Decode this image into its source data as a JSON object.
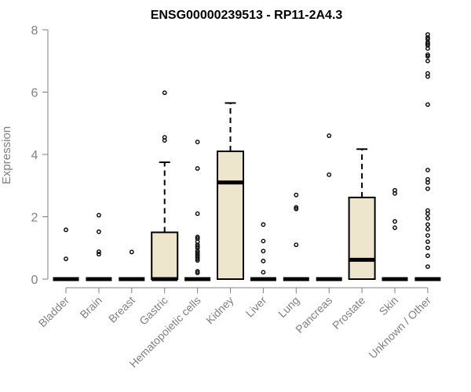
{
  "chart_data": {
    "type": "box",
    "title": "ENSG00000239513 - RP11-2A4.3",
    "xlabel": "",
    "ylabel": "Expression",
    "ylim": [
      0,
      8
    ],
    "yticks": [
      0,
      2,
      4,
      6,
      8
    ],
    "box_fill": "#ede6cc",
    "stroke_color": "#000000",
    "categories": [
      "Bladder",
      "Brain",
      "Breast",
      "Gastric",
      "Hematopoietic cells",
      "Kidney",
      "Liver",
      "Lung",
      "Pancreas",
      "Prostate",
      "Skin",
      "Unknown / Other"
    ],
    "boxes": [
      {
        "category": "Bladder",
        "q1": 0,
        "median": 0,
        "q3": 0,
        "whisker_low": 0,
        "whisker_high": 0,
        "outliers": [
          0.65,
          1.58
        ]
      },
      {
        "category": "Brain",
        "q1": 0,
        "median": 0,
        "q3": 0,
        "whisker_low": 0,
        "whisker_high": 0,
        "outliers": [
          0.8,
          0.88,
          1.52,
          2.05
        ]
      },
      {
        "category": "Breast",
        "q1": 0,
        "median": 0,
        "q3": 0,
        "whisker_low": 0,
        "whisker_high": 0,
        "outliers": [
          0.87
        ]
      },
      {
        "category": "Gastric",
        "q1": 0,
        "median": 0,
        "q3": 1.5,
        "whisker_low": 0,
        "whisker_high": 3.75,
        "outliers": [
          4.45,
          4.55,
          5.98
        ]
      },
      {
        "category": "Hematopoietic cells",
        "q1": 0,
        "median": 0,
        "q3": 0,
        "whisker_low": 0,
        "whisker_high": 0,
        "outliers": [
          0.2,
          0.25,
          0.6,
          0.65,
          0.7,
          0.75,
          0.8,
          0.85,
          0.9,
          1.0,
          1.05,
          1.1,
          1.2,
          1.3,
          1.35,
          2.1,
          3.55,
          4.4
        ]
      },
      {
        "category": "Kidney",
        "q1": 0,
        "median": 3.1,
        "q3": 4.1,
        "whisker_low": 0,
        "whisker_high": 5.65,
        "outliers": []
      },
      {
        "category": "Liver",
        "q1": 0,
        "median": 0,
        "q3": 0,
        "whisker_low": 0,
        "whisker_high": 0,
        "outliers": [
          0.22,
          0.58,
          0.9,
          1.22,
          1.75
        ]
      },
      {
        "category": "Lung",
        "q1": 0,
        "median": 0,
        "q3": 0,
        "whisker_low": 0,
        "whisker_high": 0,
        "outliers": [
          1.1,
          2.25,
          2.3,
          2.7
        ]
      },
      {
        "category": "Pancreas",
        "q1": 0,
        "median": 0,
        "q3": 0,
        "whisker_low": 0,
        "whisker_high": 0,
        "outliers": [
          3.35,
          4.6
        ]
      },
      {
        "category": "Prostate",
        "q1": 0,
        "median": 0.62,
        "q3": 2.62,
        "whisker_low": 0,
        "whisker_high": 4.17,
        "outliers": []
      },
      {
        "category": "Skin",
        "q1": 0,
        "median": 0,
        "q3": 0,
        "whisker_low": 0,
        "whisker_high": 0,
        "outliers": [
          1.65,
          1.85,
          2.75,
          2.85
        ]
      },
      {
        "category": "Unknown / Other",
        "q1": 0,
        "median": 0,
        "q3": 0,
        "whisker_low": 0,
        "whisker_high": 0,
        "outliers": [
          0.4,
          0.75,
          1.0,
          1.2,
          1.4,
          1.6,
          1.75,
          1.95,
          2.1,
          2.2,
          2.9,
          3.1,
          3.2,
          3.5,
          5.6,
          6.5,
          6.6,
          7.0,
          7.15,
          7.2,
          7.4,
          7.5,
          7.55,
          7.6,
          7.7,
          7.75,
          7.85
        ]
      }
    ]
  }
}
